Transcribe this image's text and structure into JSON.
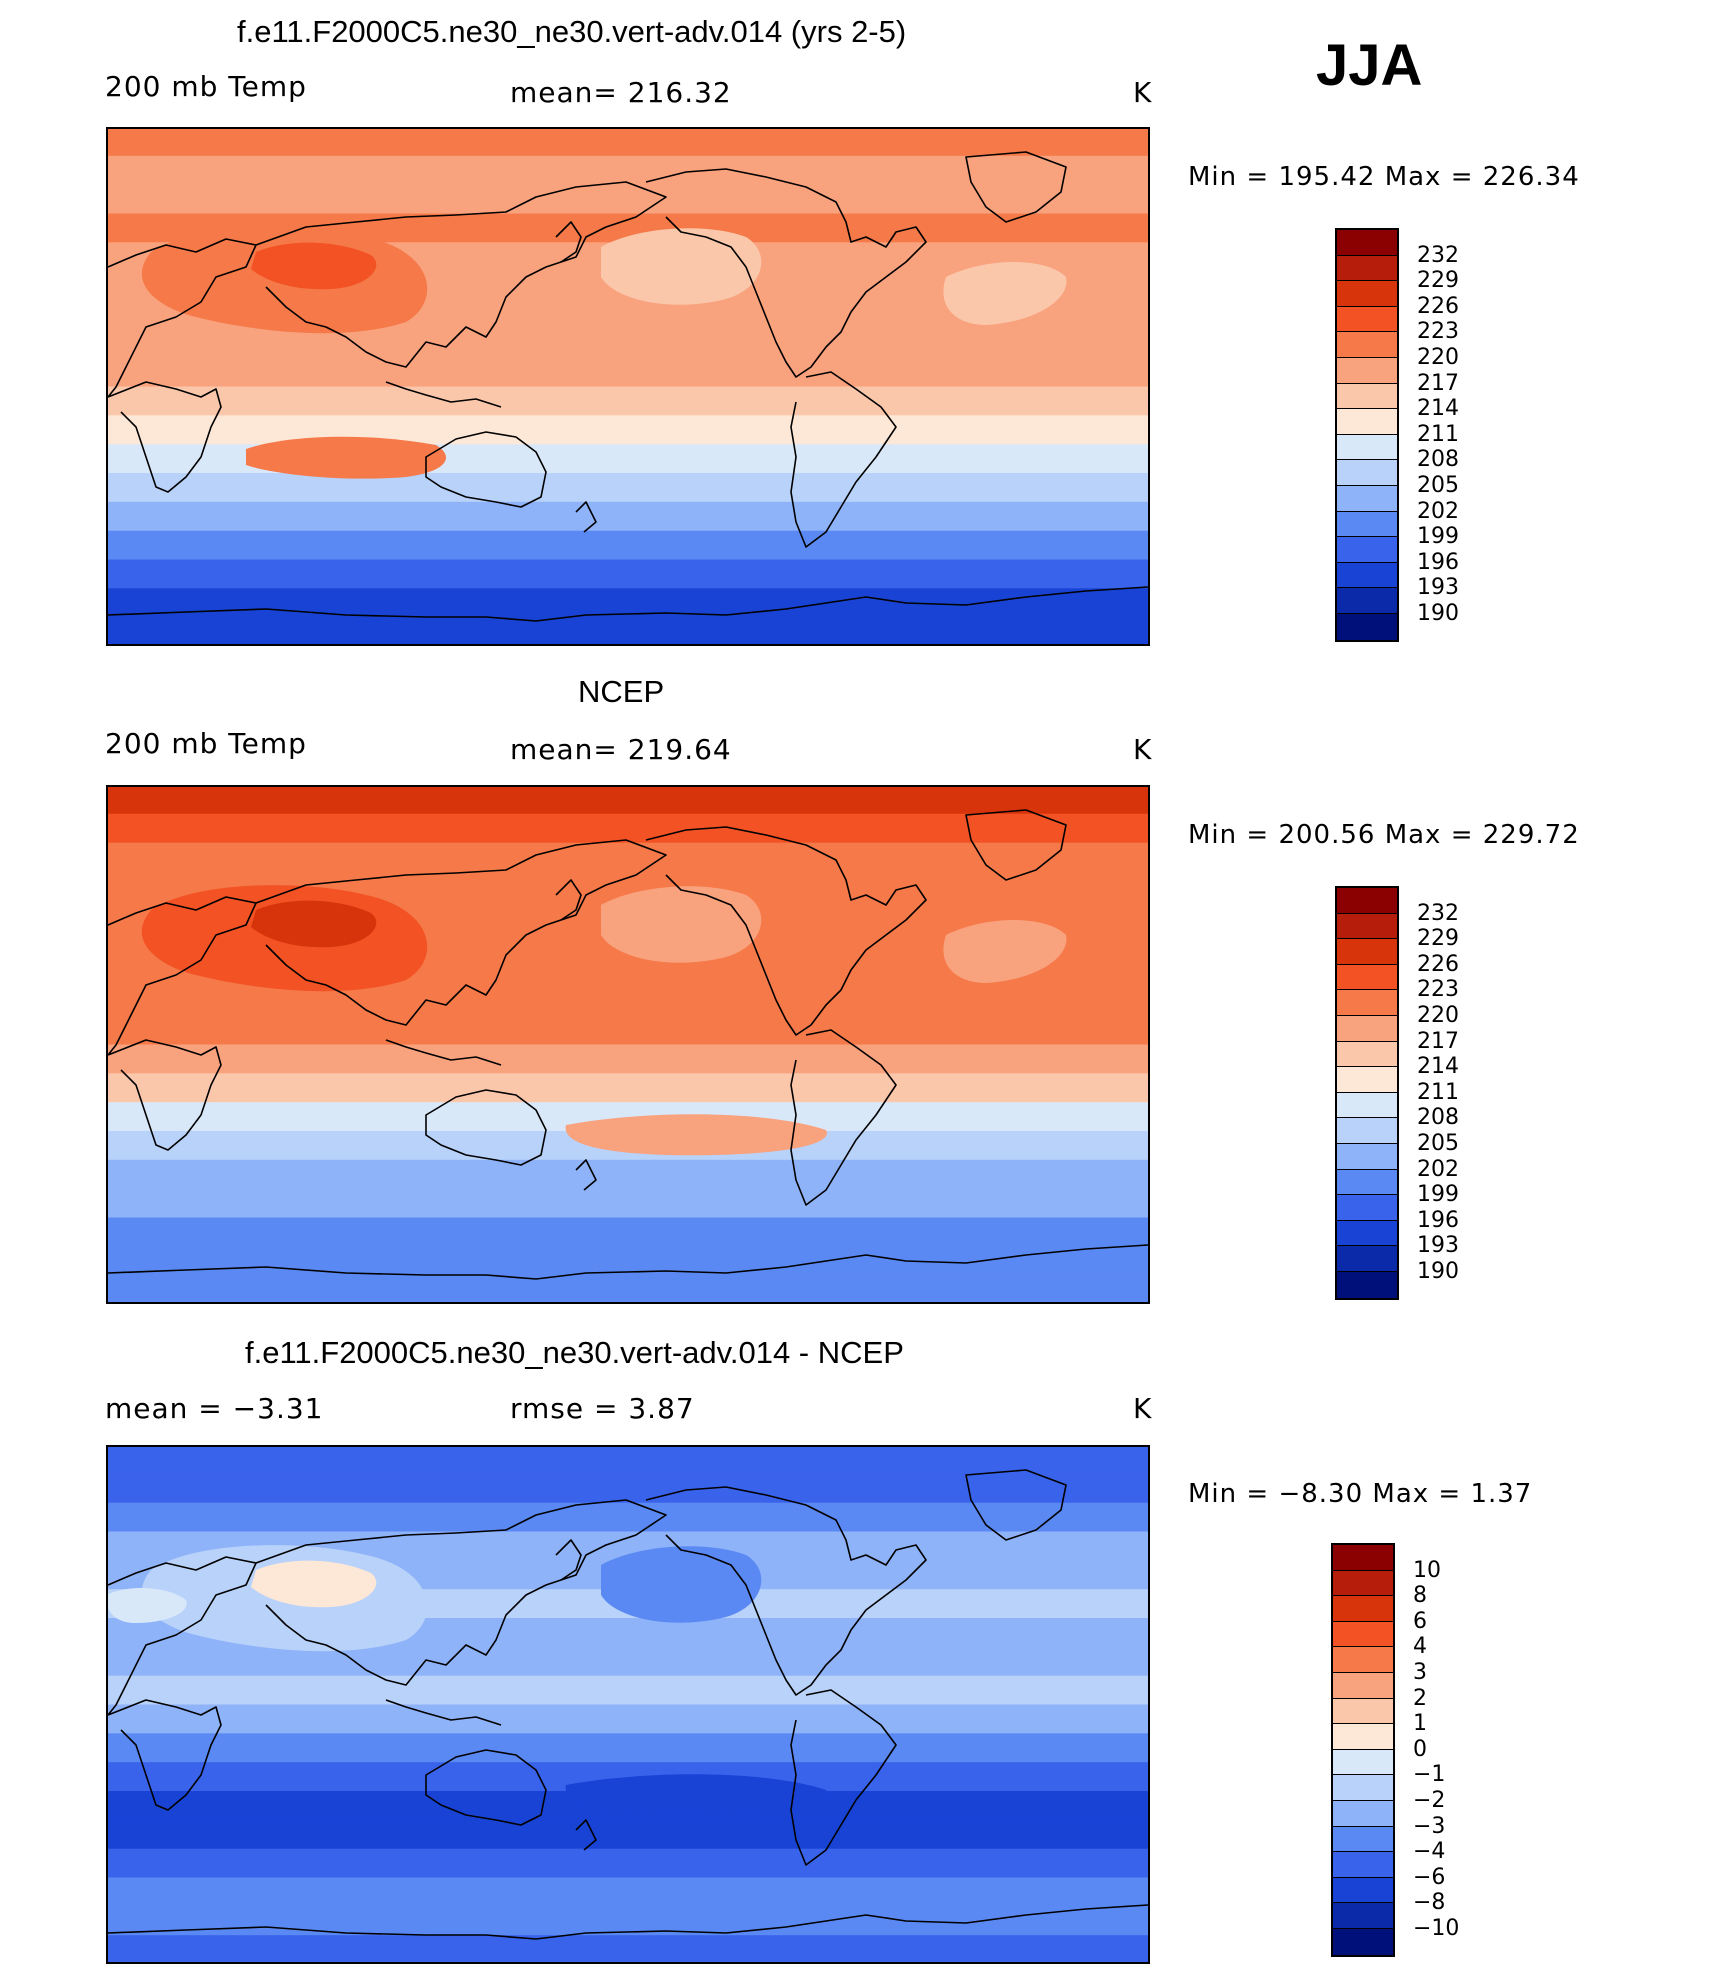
{
  "season": "JJA",
  "panels": [
    {
      "title": "f.e11.F2000C5.ne30_ne30.vert-adv.014 (yrs 2-5)",
      "left_label": "200 mb Temp",
      "center_label": "mean=  216.32",
      "units": "K",
      "minmax": "Min  =  195.42  Max  =  226.34",
      "colorbar_labels": [
        "232",
        "229",
        "226",
        "223",
        "220",
        "217",
        "214",
        "211",
        "208",
        "205",
        "202",
        "199",
        "196",
        "193",
        "190"
      ]
    },
    {
      "title": "NCEP",
      "left_label": "200 mb Temp",
      "center_label": "mean=  219.64",
      "units": "K",
      "minmax": "Min  =  200.56  Max  =  229.72",
      "colorbar_labels": [
        "232",
        "229",
        "226",
        "223",
        "220",
        "217",
        "214",
        "211",
        "208",
        "205",
        "202",
        "199",
        "196",
        "193",
        "190"
      ]
    },
    {
      "title": "f.e11.F2000C5.ne30_ne30.vert-adv.014 - NCEP",
      "left_label": "mean  =     −3.31",
      "center_label": "rmse  =      3.87",
      "units": "K",
      "minmax": "Min  =     −8.30  Max  =      1.37",
      "colorbar_labels": [
        "10",
        "8",
        "6",
        "4",
        "3",
        "2",
        "1",
        "0",
        "−1",
        "−2",
        "−3",
        "−4",
        "−6",
        "−8",
        "−10"
      ]
    }
  ],
  "colors": {
    "palette": [
      "#8b0000",
      "#b71d0b",
      "#d8340b",
      "#f25224",
      "#f57949",
      "#f9a27e",
      "#fbc7ab",
      "#fde7d6",
      "#d9e8f9",
      "#b8d2f9",
      "#8fb3f9",
      "#5b89f3",
      "#3a63ec",
      "#1843d5",
      "#0a2aaa",
      "#00107a"
    ]
  },
  "maps": [
    {
      "zonal_bands": [
        "#f57949",
        "#f9a27e",
        "#f9a27e",
        "#f57949",
        "#f9a27e",
        "#f9a27e",
        "#f9a27e",
        "#f9a27e",
        "#f9a27e",
        "#fbc7ab",
        "#fde7d6",
        "#d9e8f9",
        "#b8d2f9",
        "#8fb3f9",
        "#5b89f3",
        "#3a63ec",
        "#1843d5",
        "#1843d5"
      ],
      "blobs": [
        {
          "color": "#f57949",
          "shape": "tibet-warm"
        },
        {
          "color": "#f25224",
          "shape": "tibet-core"
        },
        {
          "color": "#fbc7ab",
          "shape": "npacific-cool"
        },
        {
          "color": "#fbc7ab",
          "shape": "natlantic-cool"
        },
        {
          "color": "#f57949",
          "shape": "australia-warm"
        }
      ]
    },
    {
      "zonal_bands": [
        "#d8340b",
        "#f25224",
        "#f57949",
        "#f57949",
        "#f57949",
        "#f57949",
        "#f57949",
        "#f57949",
        "#f57949",
        "#f9a27e",
        "#fbc7ab",
        "#d9e8f9",
        "#b8d2f9",
        "#8fb3f9",
        "#8fb3f9",
        "#5b89f3",
        "#5b89f3",
        "#5b89f3"
      ],
      "blobs": [
        {
          "color": "#f25224",
          "shape": "tibet-warm"
        },
        {
          "color": "#d8340b",
          "shape": "tibet-core"
        },
        {
          "color": "#f9a27e",
          "shape": "npacific-cool"
        },
        {
          "color": "#f9a27e",
          "shape": "natlantic-cool"
        },
        {
          "color": "#f9a27e",
          "shape": "spacific-cool"
        }
      ]
    },
    {
      "zonal_bands": [
        "#3a63ec",
        "#3a63ec",
        "#5b89f3",
        "#8fb3f9",
        "#8fb3f9",
        "#b8d2f9",
        "#8fb3f9",
        "#8fb3f9",
        "#b8d2f9",
        "#8fb3f9",
        "#5b89f3",
        "#3a63ec",
        "#1843d5",
        "#1843d5",
        "#3a63ec",
        "#5b89f3",
        "#5b89f3",
        "#3a63ec"
      ],
      "blobs": [
        {
          "color": "#b8d2f9",
          "shape": "tibet-warm"
        },
        {
          "color": "#fde7d6",
          "shape": "tibet-core"
        },
        {
          "color": "#d9e8f9",
          "shape": "mideast-warm"
        },
        {
          "color": "#5b89f3",
          "shape": "npacific-cool"
        },
        {
          "color": "#1843d5",
          "shape": "spacific-cool"
        }
      ]
    }
  ]
}
